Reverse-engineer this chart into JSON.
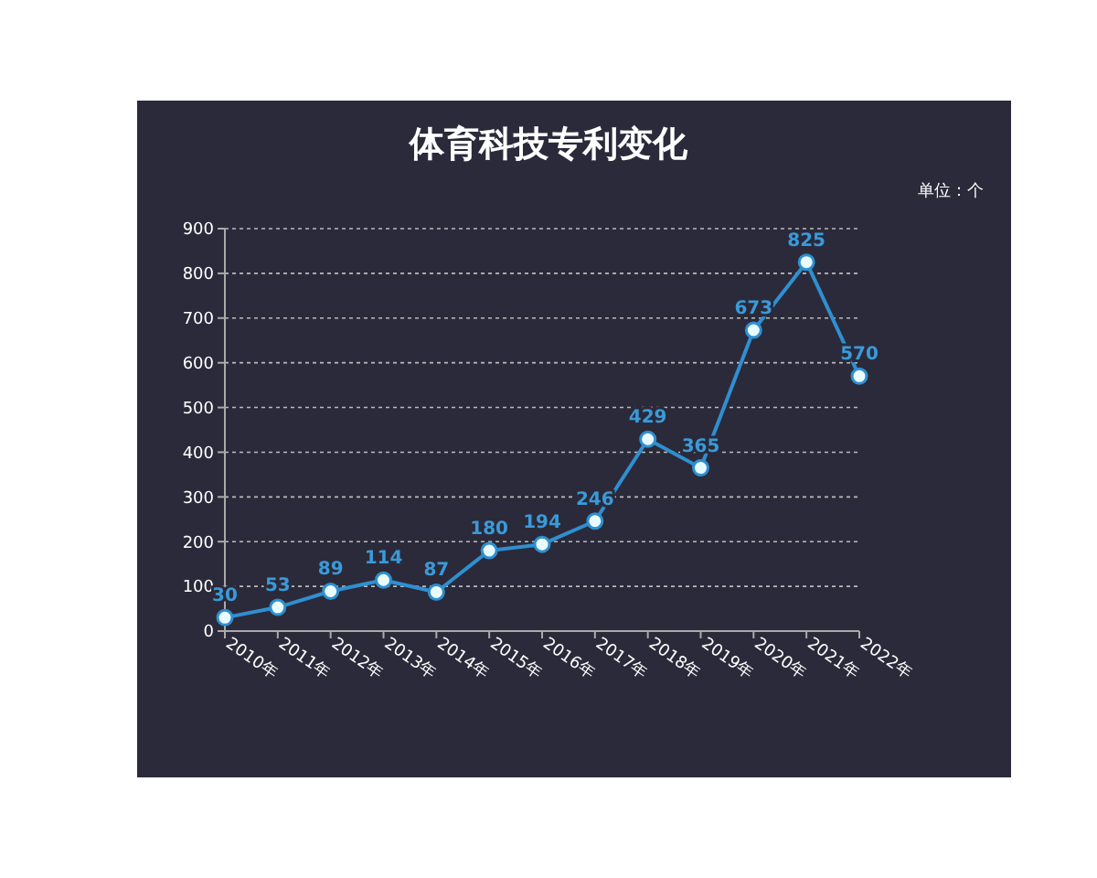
{
  "chart_data": {
    "type": "line",
    "title": "体育科技专利变化",
    "annotations": [
      "单位：个"
    ],
    "categories": [
      "2010年",
      "2011年",
      "2012年",
      "2013年",
      "2014年",
      "2015年",
      "2016年",
      "2017年",
      "2018年",
      "2019年",
      "2020年",
      "2021年",
      "2022年"
    ],
    "series": [
      {
        "color": "#2f8fd0",
        "values": [
          30,
          53,
          89,
          114,
          87,
          180,
          194,
          246,
          429,
          365,
          673,
          825,
          570
        ]
      }
    ],
    "ylim": [
      0,
      900
    ],
    "yticks": [
      0,
      100,
      200,
      300,
      400,
      500,
      600,
      700,
      800,
      900
    ],
    "grid": "y",
    "marker": "circle",
    "data_labels": true
  }
}
